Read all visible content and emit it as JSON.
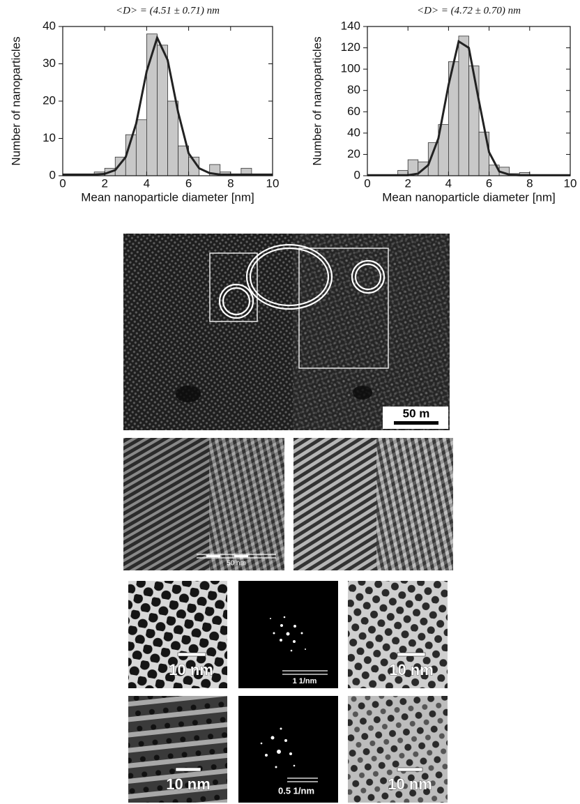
{
  "chart_data": [
    {
      "type": "histogram",
      "title": "<D> = (4.51 ± 0.71) nm",
      "xlabel": "Mean nanoparticle diameter [nm]",
      "ylabel": "Number of nanoparticles",
      "bins": [
        1.5,
        2,
        2.5,
        3,
        3.5,
        4,
        4.5,
        5,
        5.5,
        6,
        6.5,
        7,
        7.5,
        8,
        8.5,
        9
      ],
      "counts": [
        1,
        2,
        5,
        11,
        15,
        38,
        35,
        20,
        8,
        5,
        0,
        3,
        1,
        0,
        2
      ],
      "color": "#c8c8c8",
      "fit": {
        "x": [
          0,
          0.5,
          1,
          1.5,
          2,
          2.5,
          3,
          3.5,
          4,
          4.5,
          5,
          5.5,
          6,
          6.5,
          7,
          7.5,
          8,
          8.5,
          9,
          9.5,
          10
        ],
        "y": [
          0.3,
          0.3,
          0.3,
          0.3,
          0.5,
          1.5,
          5,
          14,
          28,
          37,
          31,
          17,
          6,
          2,
          0.7,
          0.3,
          0.3,
          0.3,
          0.3,
          0.3,
          0.3
        ],
        "color": "#222222"
      },
      "xlim": [
        0,
        10
      ],
      "ylim": [
        0,
        40
      ],
      "xticks": [
        0,
        2,
        4,
        6,
        8,
        10
      ],
      "yticks": [
        0,
        10,
        20,
        30,
        40
      ]
    },
    {
      "type": "histogram",
      "title": "<D> = (4.72 ± 0.70) nm",
      "xlabel": "Mean nanoparticle diameter [nm]",
      "ylabel": "Number of nanoparticles",
      "bins": [
        1.5,
        2,
        2.5,
        3,
        3.5,
        4,
        4.5,
        5,
        5.5,
        6,
        6.5,
        7,
        7.5,
        8,
        8.5,
        9,
        9.5
      ],
      "counts": [
        5,
        15,
        13,
        31,
        48,
        107,
        131,
        103,
        41,
        10,
        8,
        2,
        3,
        1,
        0,
        1
      ],
      "color": "#c8c8c8",
      "fit": {
        "x": [
          0,
          0.5,
          1,
          1.5,
          2,
          2.5,
          3,
          3.5,
          4,
          4.5,
          5,
          5.5,
          6,
          6.5,
          7,
          7.5,
          8,
          8.5,
          9,
          9.5,
          10
        ],
        "y": [
          0.5,
          0.5,
          0.5,
          0.5,
          0.5,
          2,
          10,
          35,
          85,
          126,
          120,
          70,
          22,
          4,
          1,
          0.5,
          0.5,
          0.5,
          0.5,
          0.5,
          0.5
        ],
        "color": "#222222"
      },
      "xlim": [
        0,
        10
      ],
      "ylim": [
        0,
        140
      ],
      "xticks": [
        0,
        2,
        4,
        6,
        8,
        10
      ],
      "yticks": [
        0,
        20,
        40,
        60,
        80,
        100,
        120,
        140
      ]
    }
  ],
  "images": {
    "overview_scale": "50 m",
    "lattice_scale": "50 nm",
    "row1": [
      "10 nm",
      "1 1/nm",
      "10 nm"
    ],
    "row2": [
      "10 nm",
      "0.5 1/nm",
      "10 nm"
    ]
  }
}
